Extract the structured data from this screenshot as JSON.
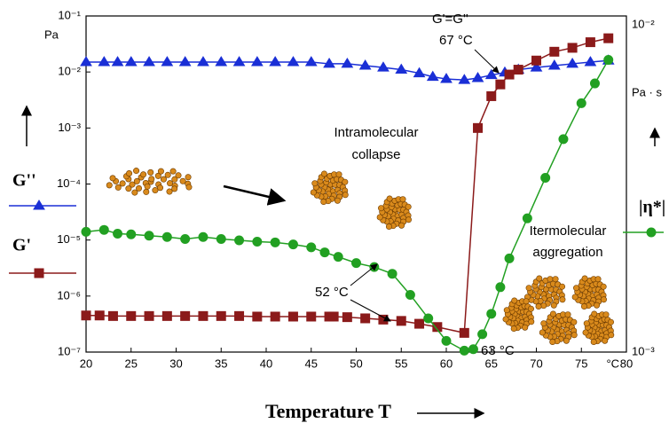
{
  "chart_data": {
    "type": "line",
    "x_label": "Temperature T",
    "x_unit": "°C",
    "y_unit": "Pa",
    "y2_unit": "Pa · s",
    "xlim": [
      20,
      80
    ],
    "xticks": [
      20,
      25,
      30,
      35,
      40,
      45,
      50,
      55,
      60,
      65,
      70,
      75,
      80
    ],
    "log_y": true,
    "ylim": [
      1e-07,
      0.1
    ],
    "yticks": [
      {
        "value": 0.1,
        "label": "10⁻¹"
      },
      {
        "value": 0.01,
        "label": "10⁻²"
      },
      {
        "value": 0.001,
        "label": "10⁻³"
      },
      {
        "value": 0.0001,
        "label": "10⁻⁴"
      },
      {
        "value": 1e-05,
        "label": "10⁻⁵"
      },
      {
        "value": 1e-06,
        "label": "10⁻⁶"
      },
      {
        "value": 1e-07,
        "label": "10⁻⁷"
      }
    ],
    "y2lim": [
      0.001,
      0.01
    ],
    "y2ticks": [
      {
        "value": 0.01,
        "label": "10⁻²"
      },
      {
        "value": 0.001,
        "label": "10⁻³"
      }
    ],
    "series": [
      {
        "name": "G''",
        "color": "#1a2fd6",
        "marker": "triangle",
        "x": [
          20,
          22,
          23.5,
          25,
          27,
          29,
          31,
          33,
          35,
          37,
          39,
          41,
          43,
          45,
          47,
          49,
          51,
          53,
          55,
          57,
          58.5,
          60,
          62,
          63.5,
          65,
          66.5,
          68,
          70,
          72,
          74,
          76,
          78
        ],
        "values": [
          0.015,
          0.015,
          0.015,
          0.015,
          0.015,
          0.015,
          0.015,
          0.015,
          0.015,
          0.015,
          0.015,
          0.015,
          0.015,
          0.015,
          0.014,
          0.014,
          0.013,
          0.012,
          0.011,
          0.0095,
          0.0082,
          0.0075,
          0.0072,
          0.0078,
          0.0088,
          0.0098,
          0.011,
          0.012,
          0.013,
          0.014,
          0.015,
          0.016
        ]
      },
      {
        "name": "G'",
        "color": "#8b1a1a",
        "marker": "square",
        "x": [
          20,
          21.5,
          23,
          25,
          27,
          29,
          31,
          33,
          35,
          37,
          39,
          41,
          43,
          45,
          47,
          47.5,
          49,
          51,
          53,
          55,
          57,
          59,
          62,
          63.5,
          65,
          66,
          67,
          68,
          70,
          72,
          74,
          76,
          78
        ],
        "values": [
          4.5e-07,
          4.5e-07,
          4.4e-07,
          4.4e-07,
          4.4e-07,
          4.4e-07,
          4.4e-07,
          4.4e-07,
          4.4e-07,
          4.4e-07,
          4.3e-07,
          4.3e-07,
          4.3e-07,
          4.3e-07,
          4.3e-07,
          4.3e-07,
          4.2e-07,
          4e-07,
          3.8e-07,
          3.6e-07,
          3.2e-07,
          2.8e-07,
          2.2e-07,
          0.001,
          0.0037,
          0.006,
          0.009,
          0.011,
          0.016,
          0.023,
          0.027,
          0.034,
          0.04
        ]
      },
      {
        "name": "|η*|",
        "color": "#22a022",
        "marker": "circle",
        "axis": "y2",
        "x": [
          20,
          22,
          23.5,
          25,
          27,
          29,
          31,
          33,
          35,
          37,
          39,
          41,
          43,
          45,
          46.5,
          48,
          50,
          52,
          54,
          56,
          58,
          60,
          62,
          63,
          64,
          65,
          66,
          67,
          69,
          71,
          73,
          75,
          76.5,
          78
        ],
        "values": [
          0.00228,
          0.00231,
          0.00225,
          0.00224,
          0.00222,
          0.0022,
          0.00217,
          0.0022,
          0.00217,
          0.00215,
          0.00213,
          0.00212,
          0.00209,
          0.00205,
          0.00198,
          0.00192,
          0.00184,
          0.00179,
          0.00171,
          0.00148,
          0.00126,
          0.00108,
          0.00101,
          0.00102,
          0.00113,
          0.0013,
          0.00156,
          0.0019,
          0.0025,
          0.0033,
          0.0043,
          0.0055,
          0.0063,
          0.0074
        ]
      }
    ],
    "annotations": [
      {
        "text": "G'=G''"
      },
      {
        "text": "67 °C"
      },
      {
        "text": "Intramolecular"
      },
      {
        "text": "collapse"
      },
      {
        "text": "Itermolecular"
      },
      {
        "text": "aggregation"
      },
      {
        "text": "52 °C"
      },
      {
        "text": "63 °C"
      }
    ]
  }
}
